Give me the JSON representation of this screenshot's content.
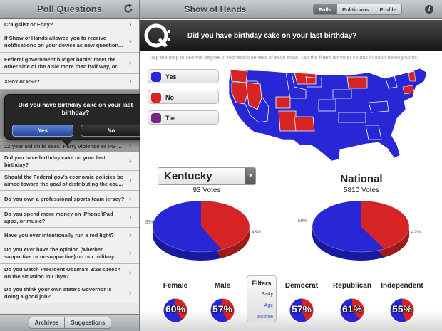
{
  "sidebar": {
    "title": "Poll Questions",
    "questions": [
      {
        "text": "Craigslist or Ebay?"
      },
      {
        "text": "If Show of Hands allowed you to receive notifications on your device as new question..."
      },
      {
        "text": "Federal government budget battle: meet the other side of the aisle more than half way, or..."
      },
      {
        "text": "XBox or PS3?"
      },
      {
        "text": "12-year old child sees: Party violence or PG-..."
      },
      {
        "text": "Did you have birthday cake on your last birthday?"
      },
      {
        "text": "Should the Federal gov's economic policies be aimed toward the goal of distributing the cou..."
      },
      {
        "text": "Do you own a professional sports team jersey?"
      },
      {
        "text": "Do you spend more money on iPhone/iPad apps, or music?"
      },
      {
        "text": "Have you ever intentionally run a red light?"
      },
      {
        "text": "Do you ever have the opinion (whether supportive or unsupportive) on our military..."
      },
      {
        "text": "Do you watch President Obama's 3/28 speech on the situation in Libya?"
      },
      {
        "text": "Do you think your own state's Governor is doing a good job?"
      }
    ],
    "footer": {
      "archives": "Archives",
      "suggestions": "Suggestions"
    }
  },
  "popup": {
    "question": "Did you have birthday cake on your last birthday?",
    "yes_label": "Yes",
    "no_label": "No"
  },
  "header": {
    "title": "Show of Hands",
    "tabs": [
      "Polls",
      "Politicians",
      "Profile"
    ],
    "active_tab": "Polls"
  },
  "question": {
    "logo_letter": "Q:",
    "text": "Did you have birthday cake on your last birthday?"
  },
  "instructions": "Tap the map to see the degree of redness/blueness of each state. Tap the filters for voter counts in each demographic.",
  "answers": [
    {
      "label": "Yes",
      "color": "#2727d6"
    },
    {
      "label": "No",
      "color": "#d62424"
    },
    {
      "label": "Tie",
      "color": "#7a2485"
    }
  ],
  "state_panel": {
    "state": "Kentucky",
    "votes": "93 Votes",
    "dropdown_glyph": "▼",
    "yes_pct_label": "57%",
    "no_pct_label": "43%",
    "yes_share": 57
  },
  "national_panel": {
    "title": "National",
    "votes": "5810 Votes",
    "yes_pct_label": "58%",
    "no_pct_label": "42%",
    "yes_share": 58
  },
  "demographics": [
    {
      "label": "Female",
      "value": "60%",
      "share": 60
    },
    {
      "label": "Male",
      "value": "57%",
      "share": 57
    },
    {
      "label": "Democrat",
      "value": "57%",
      "share": 57
    },
    {
      "label": "Republican",
      "value": "61%",
      "share": 61
    },
    {
      "label": "Independent",
      "value": "55%",
      "share": 55
    }
  ],
  "filters": {
    "title": "Filters",
    "options": [
      "Party",
      "Age",
      "Income"
    ]
  }
}
